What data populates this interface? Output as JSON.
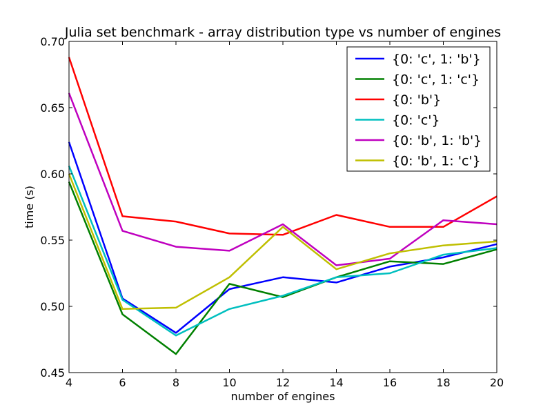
{
  "chart_data": {
    "type": "line",
    "title": "Julia set benchmark - array distribution type vs number of engines",
    "xlabel": "number of engines",
    "ylabel": "time (s)",
    "xlim": [
      4,
      20
    ],
    "ylim": [
      0.45,
      0.7
    ],
    "x": [
      4,
      6,
      8,
      10,
      12,
      14,
      16,
      18,
      20
    ],
    "xticks": [
      "4",
      "6",
      "8",
      "10",
      "12",
      "14",
      "16",
      "18",
      "20"
    ],
    "yticks": [
      "0.45",
      "0.50",
      "0.55",
      "0.60",
      "0.65",
      "0.70"
    ],
    "legend_position": "top-right",
    "grid": false,
    "series": [
      {
        "name": "{0: 'c', 1: 'b'}",
        "color": "#0000ff",
        "values": [
          0.624,
          0.506,
          0.48,
          0.513,
          0.522,
          0.518,
          0.53,
          0.537,
          0.547
        ]
      },
      {
        "name": "{0: 'c', 1: 'c'}",
        "color": "#008000",
        "values": [
          0.594,
          0.494,
          0.464,
          0.517,
          0.507,
          0.522,
          0.534,
          0.532,
          0.543
        ]
      },
      {
        "name": "{0: 'b'}",
        "color": "#ff0000",
        "values": [
          0.688,
          0.568,
          0.564,
          0.555,
          0.554,
          0.569,
          0.56,
          0.56,
          0.583
        ]
      },
      {
        "name": "{0: 'c'}",
        "color": "#00bfbf",
        "values": [
          0.606,
          0.505,
          0.478,
          0.498,
          0.508,
          0.522,
          0.525,
          0.539,
          0.544
        ]
      },
      {
        "name": "{0: 'b', 1: 'b'}",
        "color": "#bf00bf",
        "values": [
          0.661,
          0.557,
          0.545,
          0.542,
          0.562,
          0.531,
          0.536,
          0.565,
          0.562
        ]
      },
      {
        "name": "{0: 'b', 1: 'c'}",
        "color": "#bfbf00",
        "values": [
          0.6,
          0.498,
          0.499,
          0.522,
          0.56,
          0.528,
          0.54,
          0.546,
          0.549
        ]
      }
    ]
  }
}
